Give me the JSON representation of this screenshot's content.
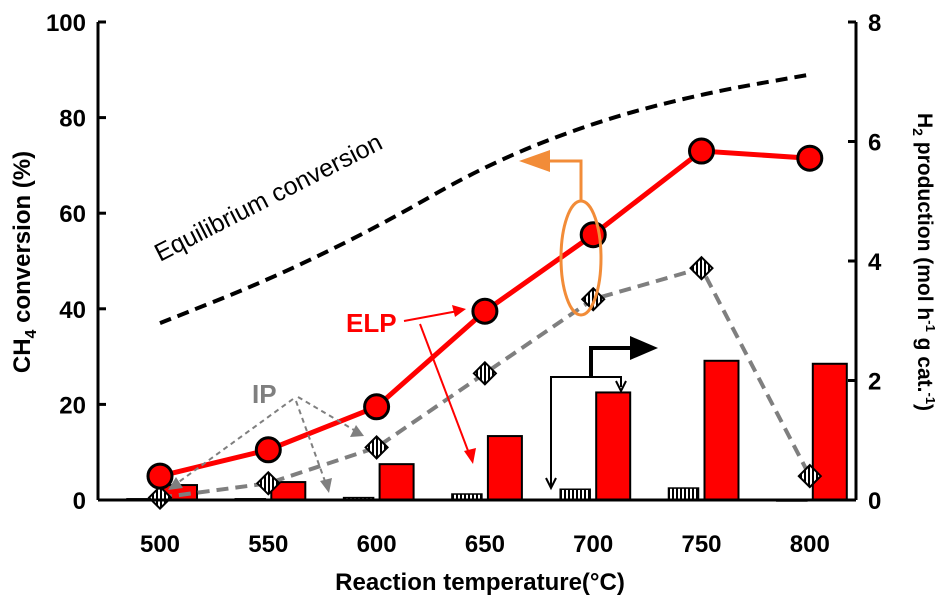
{
  "chart_data": {
    "type": "line",
    "x": [
      500,
      550,
      600,
      650,
      700,
      750,
      800
    ],
    "xlabel": "Reaction  temperature(°C)",
    "ylabel_left": {
      "main": "CH",
      "sub": "4",
      "rest": " conversion (%)"
    },
    "ylabel_right": {
      "main": "H",
      "sub": "2",
      "rest": " production (mol h",
      "sup1": "-1",
      "rest2": " g cat.",
      "sup2": "-1",
      "end": ")"
    },
    "ylim_left": [
      0,
      100
    ],
    "ylim_right": [
      0,
      8
    ],
    "yticks_left": [
      0,
      20,
      40,
      60,
      80,
      100
    ],
    "yticks_right": [
      0,
      2,
      4,
      6,
      8
    ],
    "series": [
      {
        "name": "Equilibrium conversion",
        "axis": "left",
        "style": "dashed-black",
        "x": [
          500,
          550,
          600,
          650,
          700,
          750,
          800
        ],
        "values": [
          37,
          46,
          57,
          70,
          79,
          85,
          89
        ]
      },
      {
        "name": "ELP",
        "axis": "left",
        "style": "red-circle",
        "values": [
          5,
          10.5,
          19.5,
          39.5,
          55.5,
          73,
          71.5
        ]
      },
      {
        "name": "IP",
        "axis": "left",
        "style": "gray-dashed-diamond",
        "values": [
          0.5,
          3.5,
          11,
          26.5,
          42,
          48.5,
          5
        ]
      },
      {
        "name": "ELP",
        "axis": "right",
        "style": "red-bar",
        "values": [
          0.25,
          0.3,
          0.6,
          1.07,
          1.8,
          2.33,
          2.28
        ]
      },
      {
        "name": "IP",
        "axis": "right",
        "style": "hatched-bar",
        "values": [
          0.02,
          0.02,
          0.04,
          0.1,
          0.18,
          0.2,
          0.0
        ]
      }
    ],
    "annotations": {
      "equilibrium": "Equilibrium conversion",
      "elp": "ELP",
      "ip": "IP"
    },
    "colors": {
      "elp": "#ff0000",
      "ip": "#7f7f7f",
      "equilibrium": "#000000",
      "arrow_left": "#f28c38"
    }
  }
}
